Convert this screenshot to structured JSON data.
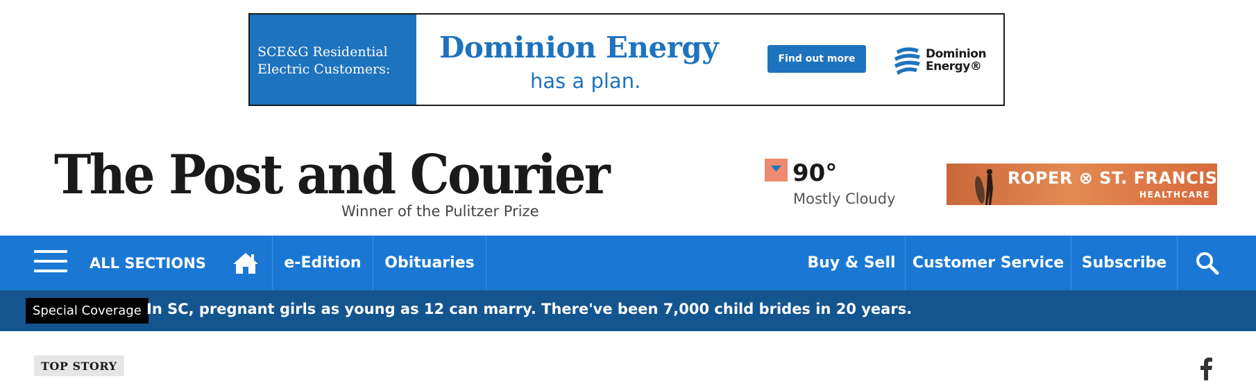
{
  "ad_banner": {
    "left_text_line1": "SCE&G Residential",
    "left_text_line2": "Electric Customers:",
    "headline": "Dominion Energy",
    "subline": "has a plan.",
    "cta_label": "Find out more",
    "logo_line1": "Dominion",
    "logo_line2": "Energy®",
    "brand_color": "#1e73be"
  },
  "masthead": {
    "title": "The Post and Courier",
    "tagline": "Winner of the Pulitzer Prize"
  },
  "weather": {
    "temperature": "90°",
    "condition": "Mostly Cloudy",
    "icon": "weather-down-arrow-icon"
  },
  "sponsor": {
    "name": "ROPER ⊗ ST. FRANCIS",
    "sub": "HEALTHCARE"
  },
  "nav": {
    "all_sections": "ALL SECTIONS",
    "e_edition": "e-Edition",
    "obituaries": "Obituaries",
    "buy_sell": "Buy & Sell",
    "customer_service": "Customer Service",
    "subscribe": "Subscribe",
    "color": "#1a78d4"
  },
  "breaking": {
    "label": "Special Coverage",
    "headline": "In SC, pregnant girls as young as 12 can marry. There've been 7,000 child brides in 20 years.",
    "color": "#15558f"
  },
  "section": {
    "badge": "TOP STORY"
  }
}
